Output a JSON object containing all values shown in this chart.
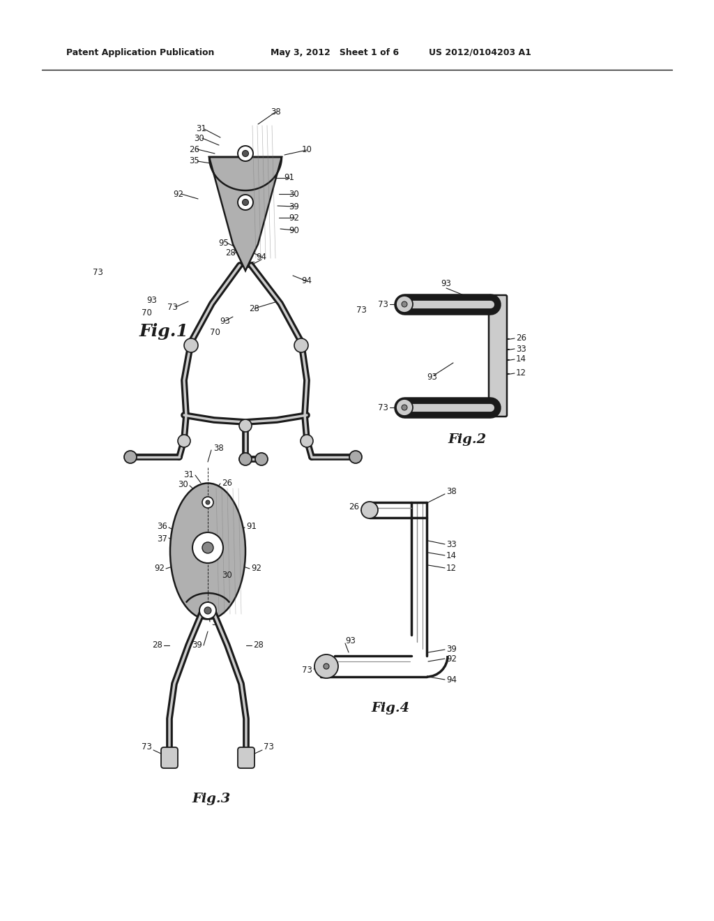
{
  "bg_color": "#ffffff",
  "lc": "#1a1a1a",
  "header_left": "Patent Application Publication",
  "header_mid": "May 3, 2012   Sheet 1 of 6",
  "header_right": "US 2012/0104203 A1",
  "fig1_label": "Fig.1",
  "fig2_label": "Fig.2",
  "fig3_label": "Fig.3",
  "fig4_label": "Fig.4",
  "gray1": "#aaaaaa",
  "gray2": "#cccccc",
  "gray3": "#888888",
  "plate_fill": "#b0b0b0"
}
